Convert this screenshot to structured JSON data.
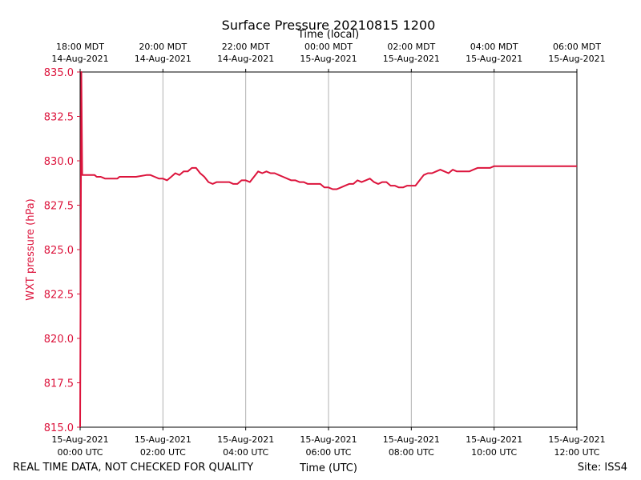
{
  "chart_data": {
    "type": "line",
    "title": "Surface Pressure 20210815 1200",
    "top_axis_label": "Time (local)",
    "xlabel": "Time (UTC)",
    "ylabel": "WXT pressure (hPa)",
    "footer_left": "REAL TIME DATA, NOT CHECKED FOR QUALITY",
    "footer_right": "Site: ISS4",
    "ylim": [
      815.0,
      835.0
    ],
    "yticks": [
      "815.0",
      "817.5",
      "820.0",
      "822.5",
      "825.0",
      "827.5",
      "830.0",
      "832.5",
      "835.0"
    ],
    "xlim_hours": [
      0,
      12
    ],
    "xticks_bottom": [
      {
        "line1": "15-Aug-2021",
        "line2": "00:00 UTC"
      },
      {
        "line1": "15-Aug-2021",
        "line2": "02:00 UTC"
      },
      {
        "line1": "15-Aug-2021",
        "line2": "04:00 UTC"
      },
      {
        "line1": "15-Aug-2021",
        "line2": "06:00 UTC"
      },
      {
        "line1": "15-Aug-2021",
        "line2": "08:00 UTC"
      },
      {
        "line1": "15-Aug-2021",
        "line2": "10:00 UTC"
      },
      {
        "line1": "15-Aug-2021",
        "line2": "12:00 UTC"
      }
    ],
    "xticks_top": [
      {
        "line1": "18:00 MDT",
        "line2": "14-Aug-2021"
      },
      {
        "line1": "20:00 MDT",
        "line2": "14-Aug-2021"
      },
      {
        "line1": "22:00 MDT",
        "line2": "14-Aug-2021"
      },
      {
        "line1": "00:00 MDT",
        "line2": "15-Aug-2021"
      },
      {
        "line1": "02:00 MDT",
        "line2": "15-Aug-2021"
      },
      {
        "line1": "04:00 MDT",
        "line2": "15-Aug-2021"
      },
      {
        "line1": "06:00 MDT",
        "line2": "15-Aug-2021"
      }
    ],
    "grid": "vertical",
    "series_color": "#dc143c",
    "series": [
      {
        "x_hours": [
          0.0,
          0.03,
          0.05,
          0.35,
          0.4,
          0.5,
          0.6,
          0.9,
          0.95,
          1.25,
          1.3,
          1.35,
          1.6,
          1.7,
          1.8,
          1.9,
          2.0,
          2.1,
          2.2,
          2.3,
          2.4,
          2.5,
          2.6,
          2.7,
          2.8,
          2.9,
          3.0,
          3.1,
          3.2,
          3.3,
          3.4,
          3.5,
          3.6,
          3.7,
          3.8,
          3.9,
          4.0,
          4.1,
          4.2,
          4.3,
          4.4,
          4.5,
          4.6,
          4.7,
          4.8,
          4.9,
          5.0,
          5.1,
          5.2,
          5.3,
          5.4,
          5.5,
          5.6,
          5.7,
          5.8,
          5.9,
          6.0,
          6.1,
          6.2,
          6.3,
          6.4,
          6.5,
          6.6,
          6.7,
          6.8,
          6.9,
          7.0,
          7.1,
          7.2,
          7.3,
          7.4,
          7.5,
          7.6,
          7.7,
          7.8,
          7.9,
          8.0,
          8.1,
          8.2,
          8.3,
          8.4,
          8.5,
          8.6,
          8.7,
          8.8,
          8.9,
          9.0,
          9.1,
          9.2,
          9.3,
          9.4,
          9.5,
          9.6,
          9.7,
          9.8,
          9.9,
          10.0,
          10.1,
          10.2,
          10.3,
          10.4,
          10.5,
          10.6,
          10.7,
          10.8,
          10.9,
          11.0,
          11.1,
          11.2,
          11.3,
          11.4,
          11.5,
          11.6,
          11.7,
          11.8,
          11.9,
          12.0
        ],
        "values": [
          815.0,
          835.0,
          829.2,
          829.2,
          829.1,
          829.1,
          829.0,
          829.0,
          829.1,
          829.1,
          829.1,
          829.1,
          829.2,
          829.2,
          829.1,
          829.0,
          829.0,
          828.9,
          829.1,
          829.3,
          829.2,
          829.4,
          829.4,
          829.6,
          829.6,
          829.3,
          829.1,
          828.8,
          828.7,
          828.8,
          828.8,
          828.8,
          828.8,
          828.7,
          828.7,
          828.9,
          828.9,
          828.8,
          829.1,
          829.4,
          829.3,
          829.4,
          829.3,
          829.3,
          829.2,
          829.1,
          829.0,
          828.9,
          828.9,
          828.8,
          828.8,
          828.7,
          828.7,
          828.7,
          828.7,
          828.5,
          828.5,
          828.4,
          828.4,
          828.5,
          828.6,
          828.7,
          828.7,
          828.9,
          828.8,
          828.9,
          829.0,
          828.8,
          828.7,
          828.8,
          828.8,
          828.6,
          828.6,
          828.5,
          828.5,
          828.6,
          828.6,
          828.6,
          828.9,
          829.2,
          829.3,
          829.3,
          829.4,
          829.5,
          829.4,
          829.3,
          829.5,
          829.4,
          829.4,
          829.4,
          829.4,
          829.5,
          829.6,
          829.6,
          829.6,
          829.6,
          829.7,
          829.7,
          829.7,
          829.7,
          829.7,
          829.7,
          829.7,
          829.7,
          829.7,
          829.7,
          829.7,
          829.7,
          829.7,
          829.7,
          829.7,
          829.7,
          829.7,
          829.7,
          829.7,
          829.7,
          829.7
        ]
      }
    ]
  }
}
